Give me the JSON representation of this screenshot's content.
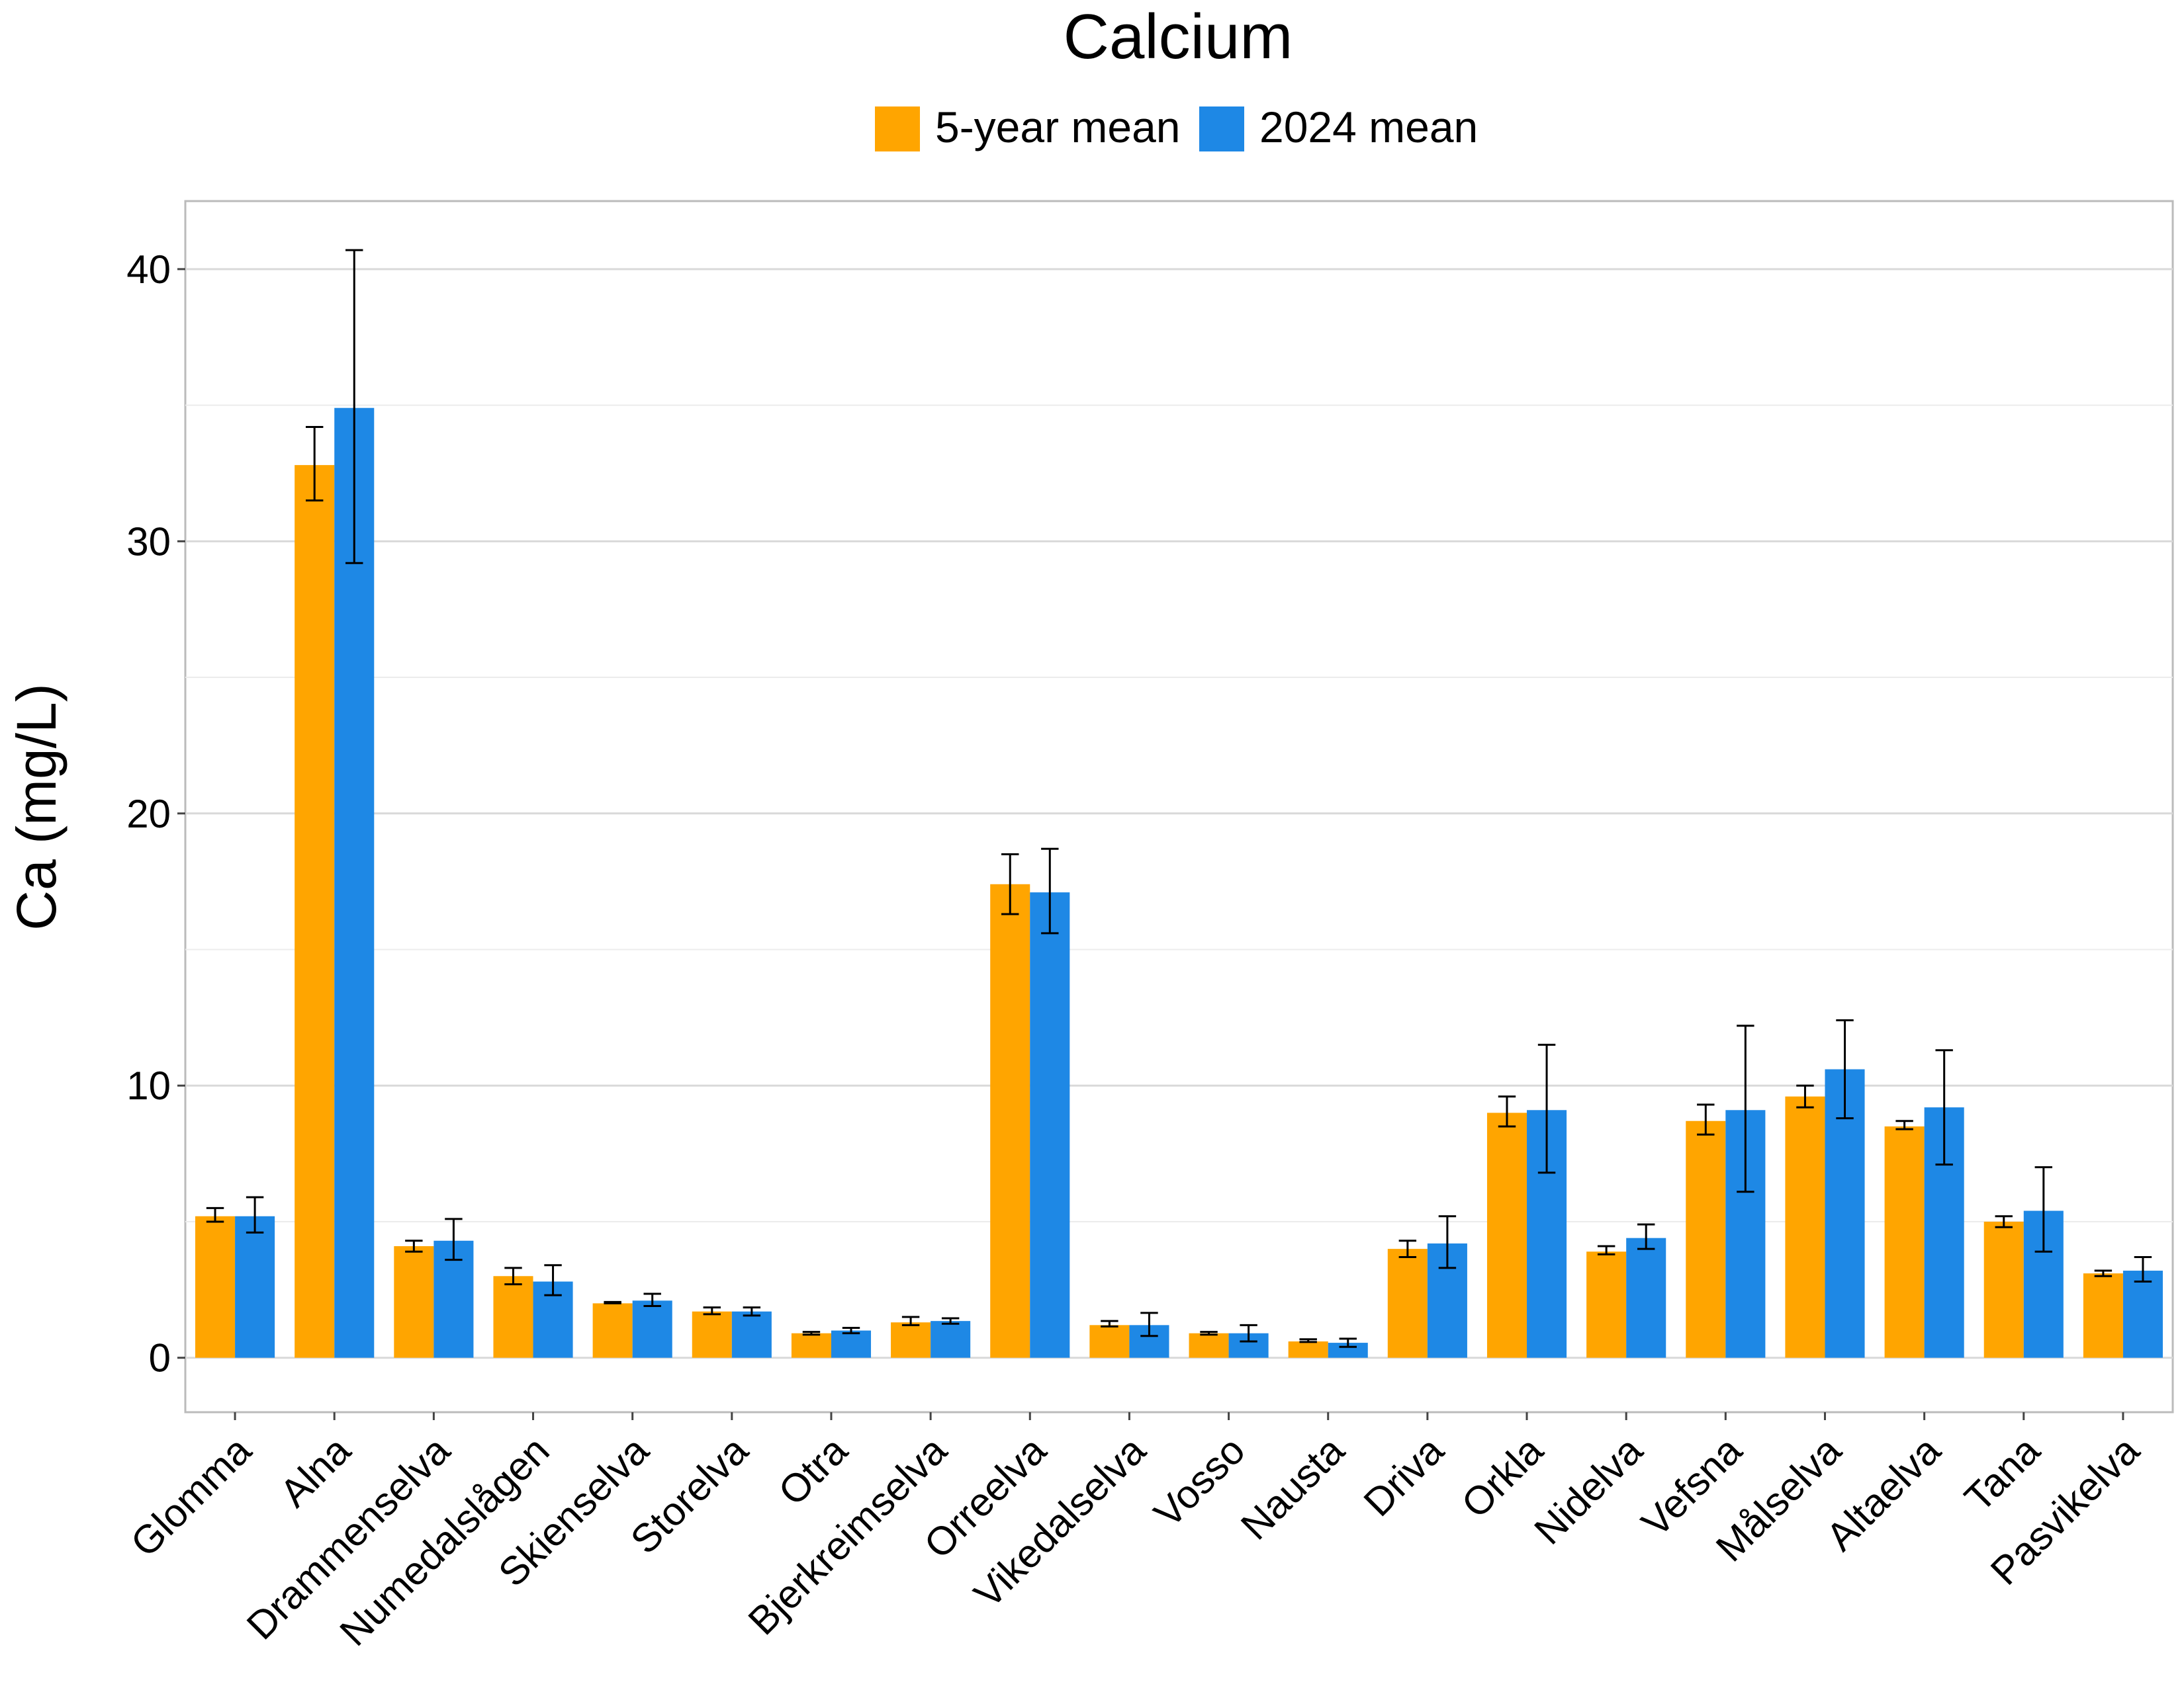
{
  "chart_data": {
    "type": "bar",
    "title": "Calcium",
    "ylabel": "Ca (mg/L)",
    "xlabel": "",
    "ylim": [
      -2,
      42.5
    ],
    "yticks": [
      0,
      10,
      20,
      30,
      40
    ],
    "grid": true,
    "legend_position": "top",
    "categories": [
      "Glomma",
      "Alna",
      "Drammenselva",
      "Numedalslågen",
      "Skienselva",
      "Storelva",
      "Otra",
      "Bjerkreimselva",
      "Orreelva",
      "Vikedalselva",
      "Vosso",
      "Nausta",
      "Driva",
      "Orkla",
      "Nidelva",
      "Vefsna",
      "Målselva",
      "Altaelva",
      "Tana",
      "Pasvikelva"
    ],
    "series": [
      {
        "name": "5-year mean",
        "color": "#FFA500",
        "values": [
          5.2,
          32.8,
          4.1,
          3.0,
          2.0,
          1.7,
          0.9,
          1.3,
          17.4,
          1.2,
          0.9,
          0.6,
          4.0,
          9.0,
          3.9,
          8.7,
          9.6,
          8.5,
          5.0,
          3.1
        ],
        "err_low": [
          5.0,
          31.5,
          3.9,
          2.7,
          2.0,
          1.6,
          0.85,
          1.2,
          16.3,
          1.15,
          0.85,
          0.58,
          3.7,
          8.5,
          3.8,
          8.2,
          9.2,
          8.4,
          4.8,
          3.0
        ],
        "err_high": [
          5.5,
          34.2,
          4.3,
          3.3,
          2.05,
          1.85,
          0.95,
          1.5,
          18.5,
          1.35,
          0.95,
          0.68,
          4.3,
          9.6,
          4.1,
          9.3,
          10.0,
          8.7,
          5.2,
          3.2
        ]
      },
      {
        "name": "2024 mean",
        "color": "#1E88E5",
        "values": [
          5.2,
          34.9,
          4.3,
          2.8,
          2.1,
          1.7,
          1.0,
          1.35,
          17.1,
          1.2,
          0.9,
          0.55,
          4.2,
          9.1,
          4.4,
          9.1,
          10.6,
          9.2,
          5.4,
          3.2
        ],
        "err_low": [
          4.6,
          29.2,
          3.6,
          2.3,
          1.9,
          1.55,
          0.9,
          1.25,
          15.6,
          0.8,
          0.6,
          0.4,
          3.3,
          6.8,
          4.0,
          6.1,
          8.8,
          7.1,
          3.9,
          2.8
        ],
        "err_high": [
          5.9,
          40.7,
          5.1,
          3.4,
          2.35,
          1.85,
          1.1,
          1.45,
          18.7,
          1.65,
          1.2,
          0.7,
          5.2,
          11.5,
          4.9,
          12.2,
          12.4,
          11.3,
          7.0,
          3.7
        ]
      }
    ]
  }
}
